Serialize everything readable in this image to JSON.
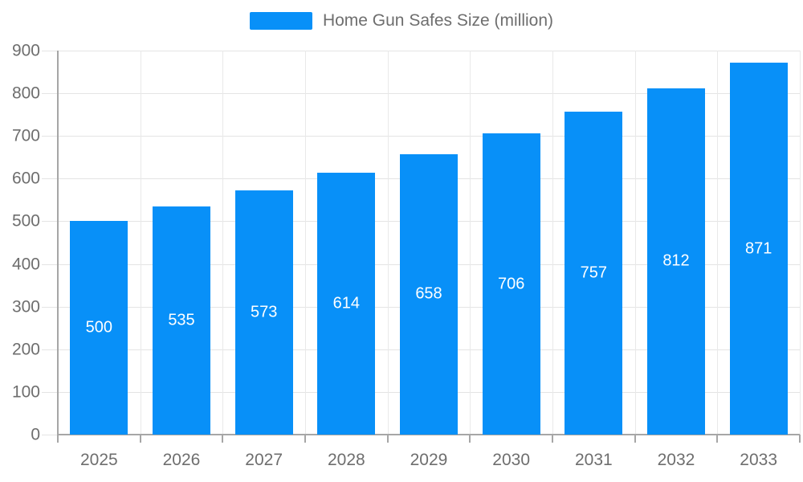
{
  "chart_data": {
    "type": "bar",
    "legend": "Home Gun Safes Size (million)",
    "legend_position": "top-center",
    "categories": [
      "2025",
      "2026",
      "2027",
      "2028",
      "2029",
      "2030",
      "2031",
      "2032",
      "2033"
    ],
    "values": [
      500,
      535,
      573,
      614,
      658,
      706,
      757,
      812,
      871
    ],
    "ylim": [
      0,
      900
    ],
    "ytick_step": 100,
    "grid": true,
    "colors": {
      "bar": "#0890f8",
      "axis": "#a6a6a6",
      "hgrid": "#e4e4e4",
      "vgrid": "#e9e9e9",
      "tick": "#a6a6a6",
      "tick_label": "#6e6e6e",
      "legend_text": "#6e6e6e",
      "value_label": "#ffffff",
      "background": "#ffffff"
    }
  }
}
